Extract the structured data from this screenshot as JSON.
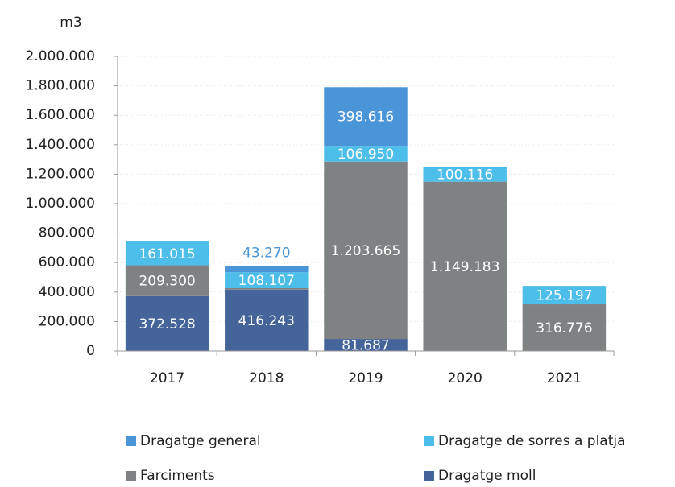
{
  "chart_data": {
    "type": "stacked-bar",
    "y_unit": "m3",
    "categories": [
      "2017",
      "2018",
      "2019",
      "2020",
      "2021"
    ],
    "series": [
      {
        "name": "Dragatge general",
        "color": "#4a95d8",
        "values": [
          null,
          43270,
          398616,
          null,
          null
        ],
        "value_labels": [
          null,
          "43.270",
          "398.616",
          null,
          null
        ]
      },
      {
        "name": "Dragatge de sorres a platja",
        "color": "#4dbde9",
        "values": [
          161015,
          108107,
          106950,
          100116,
          125197
        ],
        "value_labels": [
          "161.015",
          "108.107",
          "106.950",
          "100.116",
          "125.197"
        ]
      },
      {
        "name": "Farciments",
        "color": "#7f8283",
        "values": [
          209300,
          10000,
          1203665,
          1149183,
          316776
        ],
        "value_labels": [
          "209.300",
          null,
          "1.203.665",
          "1.149.183",
          "316.776"
        ]
      },
      {
        "name": "Dragatge moll",
        "color": "#44649a",
        "values": [
          372528,
          416243,
          81687,
          null,
          null
        ],
        "value_labels": [
          "372.528",
          "416.243",
          "81.687",
          null,
          null
        ]
      }
    ],
    "ylim": [
      0,
      2000000
    ],
    "yticks": [
      0,
      {
        "value": 200000,
        "label": "200.000"
      },
      {
        "value": 400000,
        "label": "400.000"
      },
      {
        "value": 600000,
        "label": "600.000"
      },
      {
        "value": 800000,
        "label": "800.000"
      },
      {
        "value": 1000000,
        "label": "1.000.000"
      },
      {
        "value": 1200000,
        "label": "1.200.000"
      },
      {
        "value": 1400000,
        "label": "1.400.000"
      },
      {
        "value": 1600000,
        "label": "1.600.000"
      },
      {
        "value": 1800000,
        "label": "1.800.000"
      },
      {
        "value": 2000000,
        "label": "2.000.000"
      }
    ],
    "grid": true
  }
}
